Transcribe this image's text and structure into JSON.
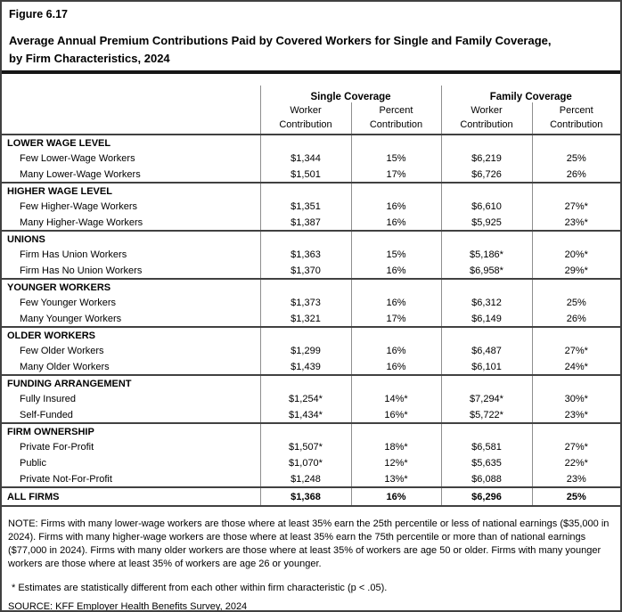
{
  "chart_data": {
    "type": "table",
    "figure_label": "Figure 6.17",
    "title": "Average Annual Premium Contributions Paid by Covered Workers for Single and Family Coverage, by Firm Characteristics, 2024",
    "column_groups": [
      "Single Coverage",
      "Family Coverage"
    ],
    "columns": [
      "Worker Contribution",
      "Percent Contribution",
      "Worker Contribution",
      "Percent Contribution"
    ],
    "sections": [
      {
        "header": "LOWER WAGE LEVEL",
        "rows": [
          {
            "label": "Few Lower-Wage Workers",
            "values": [
              "$1,344",
              "15%",
              "$6,219",
              "25%"
            ]
          },
          {
            "label": "Many Lower-Wage Workers",
            "values": [
              "$1,501",
              "17%",
              "$6,726",
              "26%"
            ]
          }
        ]
      },
      {
        "header": "HIGHER WAGE LEVEL",
        "rows": [
          {
            "label": "Few Higher-Wage Workers",
            "values": [
              "$1,351",
              "16%",
              "$6,610",
              "27%*"
            ]
          },
          {
            "label": "Many Higher-Wage Workers",
            "values": [
              "$1,387",
              "16%",
              "$5,925",
              "23%*"
            ]
          }
        ]
      },
      {
        "header": "UNIONS",
        "rows": [
          {
            "label": "Firm Has Union Workers",
            "values": [
              "$1,363",
              "15%",
              "$5,186*",
              "20%*"
            ]
          },
          {
            "label": "Firm Has No Union Workers",
            "values": [
              "$1,370",
              "16%",
              "$6,958*",
              "29%*"
            ]
          }
        ]
      },
      {
        "header": "YOUNGER WORKERS",
        "rows": [
          {
            "label": "Few Younger Workers",
            "values": [
              "$1,373",
              "16%",
              "$6,312",
              "25%"
            ]
          },
          {
            "label": "Many Younger Workers",
            "values": [
              "$1,321",
              "17%",
              "$6,149",
              "26%"
            ]
          }
        ]
      },
      {
        "header": "OLDER WORKERS",
        "rows": [
          {
            "label": "Few Older Workers",
            "values": [
              "$1,299",
              "16%",
              "$6,487",
              "27%*"
            ]
          },
          {
            "label": "Many Older Workers",
            "values": [
              "$1,439",
              "16%",
              "$6,101",
              "24%*"
            ]
          }
        ]
      },
      {
        "header": "FUNDING ARRANGEMENT",
        "rows": [
          {
            "label": "Fully Insured",
            "values": [
              "$1,254*",
              "14%*",
              "$7,294*",
              "30%*"
            ]
          },
          {
            "label": "Self-Funded",
            "values": [
              "$1,434*",
              "16%*",
              "$5,722*",
              "23%*"
            ]
          }
        ]
      },
      {
        "header": "FIRM OWNERSHIP",
        "rows": [
          {
            "label": "Private For-Profit",
            "values": [
              "$1,507*",
              "18%*",
              "$6,581",
              "27%*"
            ]
          },
          {
            "label": "Public",
            "values": [
              "$1,070*",
              "12%*",
              "$5,635",
              "22%*"
            ]
          },
          {
            "label": "Private Not-For-Profit",
            "values": [
              "$1,248",
              "13%*",
              "$6,088",
              "23%"
            ]
          }
        ]
      }
    ],
    "total_row": {
      "label": "ALL FIRMS",
      "values": [
        "$1,368",
        "16%",
        "$6,296",
        "25%"
      ]
    },
    "note": "NOTE: Firms with many lower-wage workers are those where at least 35% earn the 25th percentile or less of national earnings ($35,000 in 2024). Firms with many higher-wage workers are those where at least 35% earn the 75th percentile or more than of national earnings ($77,000 in 2024). Firms with many older workers are those where at least 35% of workers are age 50 or older. Firms with many younger workers are those where at least 35% of workers are age 26 or younger.",
    "footnote": "* Estimates are statistically different from each other within firm characteristic (p < .05).",
    "source": "SOURCE: KFF Employer Health Benefits Survey, 2024"
  }
}
